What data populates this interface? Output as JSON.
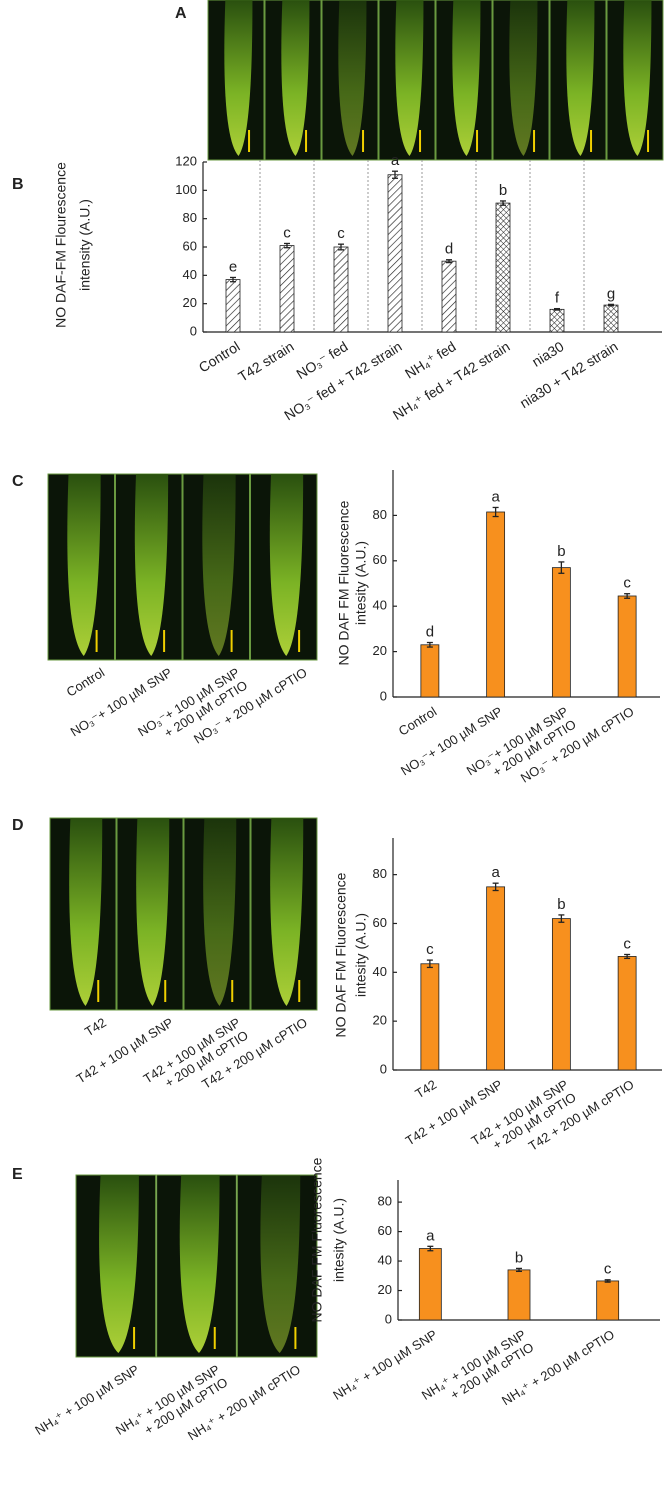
{
  "panel_a_label": "A",
  "chart_data": [
    {
      "type": "bar",
      "panel": "B",
      "ylabel": [
        "NO DAF-FM Flourescence",
        "intensity (A.U.)"
      ],
      "categories": [
        "Control",
        "T42 strain",
        "NO₃⁻ fed",
        "NO₃⁻ fed + T42 strain",
        "NH₄⁺ fed",
        "NH₄⁺ fed + T42 strain",
        "nia30",
        "nia30 + T42 strain"
      ],
      "values": [
        37,
        61,
        60,
        111,
        50,
        91,
        16,
        19
      ],
      "errors": [
        1.5,
        1.5,
        2,
        2.5,
        1,
        1.5,
        0.5,
        0.5
      ],
      "letters": [
        "e",
        "c",
        "c",
        "a",
        "d",
        "b",
        "f",
        "g"
      ],
      "hatch": [
        "diag",
        "diag",
        "diag",
        "diag",
        "diag",
        "cross",
        "cross",
        "cross"
      ],
      "color": "#ffffff",
      "ylim": [
        0,
        120
      ],
      "yticks": [
        0,
        20,
        40,
        60,
        80,
        100,
        120
      ]
    },
    {
      "type": "bar",
      "panel": "C",
      "ylabel": [
        "NO DAF FM Fluorescence",
        "intesity (A.U.)"
      ],
      "image_labels": [
        [
          "Control"
        ],
        [
          "NO₃⁻+ 100 µM SNP"
        ],
        [
          "NO₃⁻+ 100 µM SNP",
          "+ 200 µM cPTIO"
        ],
        [
          "NO₃⁻ + 200 µM cPTIO"
        ]
      ],
      "categories": [
        [
          "Control"
        ],
        [
          "NO₃⁻+ 100 µM SNP"
        ],
        [
          "NO₃⁻+ 100 µM SNP",
          "+ 200 µM cPTIO"
        ],
        [
          "NO₃⁻ + 200 µM cPTIO"
        ]
      ],
      "values": [
        23,
        81.5,
        57,
        44.5
      ],
      "errors": [
        1,
        2,
        2.5,
        1
      ],
      "letters": [
        "d",
        "a",
        "b",
        "c"
      ],
      "color": "#f7901e",
      "ylim": [
        0,
        100
      ],
      "yticks": [
        0,
        20,
        40,
        60,
        80
      ]
    },
    {
      "type": "bar",
      "panel": "D",
      "ylabel": [
        "NO DAF FM Fluorescence",
        "intesity (A.U.)"
      ],
      "image_labels": [
        [
          "T42"
        ],
        [
          "T42 + 100 µM SNP"
        ],
        [
          "T42 + 100 µM SNP",
          "+ 200 µM cPTIO"
        ],
        [
          "T42 + 200 µM cPTIO"
        ]
      ],
      "categories": [
        [
          "T42"
        ],
        [
          "T42 + 100 µM SNP"
        ],
        [
          "T42 + 100 µM SNP",
          "+ 200 µM cPTIO"
        ],
        [
          "T42 + 200 µM cPTIO"
        ]
      ],
      "values": [
        43.5,
        75,
        62,
        46.5
      ],
      "errors": [
        1.5,
        1.5,
        1.5,
        0.8
      ],
      "letters": [
        "c",
        "a",
        "b",
        "c"
      ],
      "color": "#f7901e",
      "ylim": [
        0,
        95
      ],
      "yticks": [
        0,
        20,
        40,
        60,
        80
      ]
    },
    {
      "type": "bar",
      "panel": "E",
      "ylabel": [
        "NO DAF FM Fluorescence",
        "intesity (A.U.)"
      ],
      "image_labels": [
        [
          "NH₄⁺ + 100 µM SNP"
        ],
        [
          "NH₄⁺ + 100 µM SNP",
          "+ 200 µM cPTIO"
        ],
        [
          "NH₄⁺ + 200 µM cPTIO"
        ]
      ],
      "categories": [
        [
          "NH₄⁺ + 100 µM SNP"
        ],
        [
          "NH₄⁺ + 100 µM SNP",
          "+ 200 µM cPTIO"
        ],
        [
          "NH₄⁺ + 200 µM cPTIO"
        ]
      ],
      "values": [
        48.5,
        34,
        26.5
      ],
      "errors": [
        1.5,
        1,
        0.8
      ],
      "letters": [
        "a",
        "b",
        "c"
      ],
      "color": "#f7901e",
      "ylim": [
        0,
        95
      ],
      "yticks": [
        0,
        20,
        40,
        60,
        80
      ]
    }
  ]
}
